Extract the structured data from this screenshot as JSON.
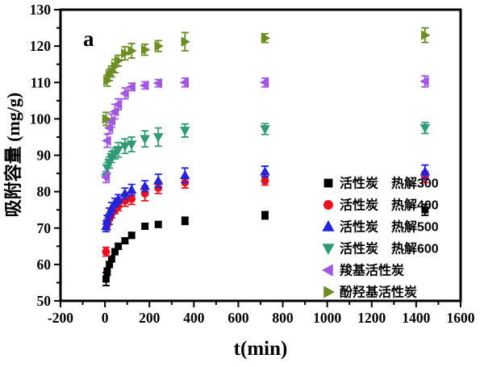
{
  "figure": {
    "panel_label": "a",
    "x_axis_title": "t(min)",
    "y_axis_title": "吸附容量 (mg/g)"
  },
  "chart_data": {
    "type": "scatter",
    "title": "",
    "xlabel": "t(min)",
    "ylabel": "吸附容量 (mg/g)",
    "xlim": [
      -200,
      1600
    ],
    "ylim": [
      50,
      130
    ],
    "x_major_step": 200,
    "x_minor_step": 100,
    "y_major_step": 10,
    "y_minor_step": 5,
    "grid": false,
    "legend_position": "inside-center-right",
    "frame_color": "#000000",
    "x": [
      5,
      10,
      20,
      30,
      45,
      60,
      90,
      120,
      180,
      240,
      360,
      720,
      1440
    ],
    "series": [
      {
        "id": "ac-300",
        "name": "活性炭　热解300",
        "marker": "square",
        "color": "#000000",
        "values": [
          56,
          58,
          60,
          61.5,
          63.5,
          65,
          66.5,
          68,
          70.5,
          71,
          72,
          73.5,
          75
        ],
        "yerr": [
          1.8,
          1,
          0.8,
          0.8,
          0.8,
          0.8,
          0.8,
          0.8,
          0.8,
          0.8,
          1,
          1,
          1.5
        ]
      },
      {
        "id": "ac-400",
        "name": "活性炭　热解400",
        "marker": "circle",
        "color": "#EE0F1E",
        "values": [
          63.5,
          71,
          72.5,
          74,
          75,
          76,
          77.5,
          78,
          79.5,
          81,
          82.5,
          83,
          84
        ],
        "yerr": [
          1.2,
          1.5,
          1.5,
          1.2,
          1,
          1.2,
          1.5,
          1.5,
          2,
          1.5,
          1.5,
          1.2,
          1.5
        ]
      },
      {
        "id": "ac-500",
        "name": "活性炭　热解500",
        "marker": "triangle-up",
        "color": "#2323DC",
        "values": [
          70.5,
          72,
          74,
          75.5,
          77,
          78,
          79.5,
          80.5,
          81.5,
          83,
          84.5,
          85.5,
          85.5
        ],
        "yerr": [
          1.5,
          1.5,
          1.5,
          1.5,
          1.2,
          1.2,
          1.5,
          1.5,
          1.5,
          1.8,
          2,
          1.5,
          1.8
        ]
      },
      {
        "id": "ac-600",
        "name": "活性炭　热解600",
        "marker": "triangle-down",
        "color": "#2E9B74",
        "values": [
          84,
          86.5,
          88,
          89.5,
          90.5,
          91.5,
          92.5,
          93,
          94.5,
          95,
          96.8,
          97.2,
          97.5
        ],
        "yerr": [
          1.5,
          1.5,
          1.5,
          1.5,
          1.5,
          2,
          2,
          2,
          2.2,
          2.5,
          1.8,
          1.5,
          1.5
        ]
      },
      {
        "id": "cooh-ac",
        "name": "羧基活性炭",
        "marker": "triangle-left",
        "color": "#A257E4",
        "values": [
          84,
          94,
          97.5,
          99.5,
          102,
          104,
          107,
          108.8,
          109.2,
          109.8,
          110,
          110,
          110.3
        ],
        "yerr": [
          1.5,
          1.8,
          1.5,
          1.8,
          2,
          1.5,
          1.5,
          1,
          1,
          1,
          1.2,
          1.2,
          1.5
        ]
      },
      {
        "id": "phoh-ac",
        "name": "酚羟基活性炭",
        "marker": "triangle-right",
        "color": "#6B8E23",
        "values": [
          100,
          110.5,
          112,
          113,
          114.5,
          116,
          118,
          118.7,
          119,
          120,
          121.2,
          122.2,
          123
        ],
        "yerr": [
          1.8,
          1.5,
          1.5,
          1.5,
          1.8,
          1.5,
          1.8,
          2,
          1.5,
          1.5,
          2.5,
          1.2,
          2
        ]
      }
    ]
  }
}
